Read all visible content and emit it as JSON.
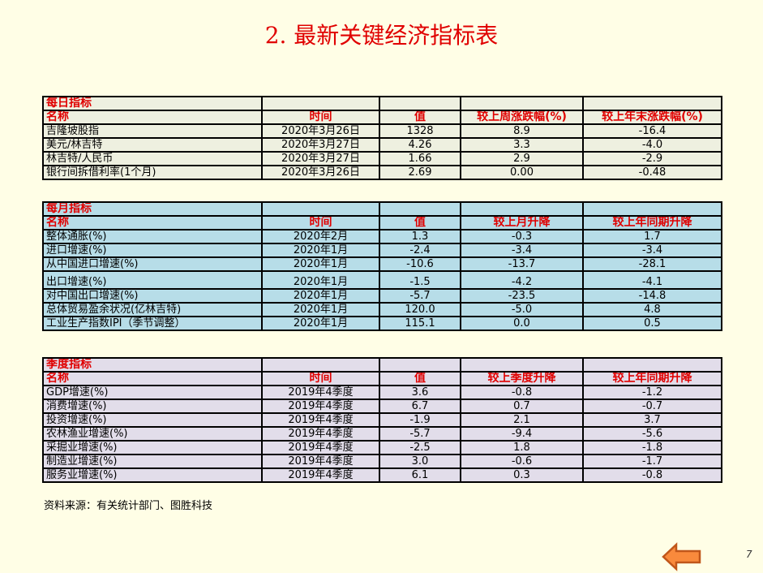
{
  "title": "2. 最新关键经济指标表",
  "daily": {
    "section": "每日指标",
    "headers": [
      "名称",
      "时间",
      "值",
      "较上周涨跌幅(%)",
      "较上年末涨跌幅(%)"
    ],
    "rows": [
      [
        "吉隆坡股指",
        "2020年3月26日",
        "1328",
        "8.9",
        "-16.4"
      ],
      [
        "美元/林吉特",
        "2020年3月27日",
        "4.26",
        "3.3",
        "-4.0"
      ],
      [
        "林吉特/人民币",
        "2020年3月27日",
        "1.66",
        "2.9",
        "-2.9"
      ],
      [
        "银行间拆借利率(1个月)",
        "2020年3月26日",
        "2.69",
        "0.00",
        "-0.48"
      ]
    ]
  },
  "monthly": {
    "section": "每月指标",
    "headers": [
      "名称",
      "时间",
      "值",
      "较上月升降",
      "较上年同期升降"
    ],
    "rows": [
      [
        "整体通胀(%)",
        "2020年2月",
        "1.3",
        "-0.3",
        "1.7"
      ],
      [
        "进口增速(%)",
        "2020年1月",
        "-2.4",
        "-3.4",
        "-3.4"
      ],
      [
        "从中国进口增速(%)",
        "2020年1月",
        "-10.6",
        "-13.7",
        "-28.1"
      ],
      [
        "出口增速(%)",
        "2020年1月",
        "-1.5",
        "-4.2",
        "-4.1"
      ],
      [
        "对中国出口增速(%)",
        "2020年1月",
        "-5.7",
        "-23.5",
        "-14.8"
      ],
      [
        "总体贸易盈余状况(亿林吉特)",
        "2020年1月",
        "120.0",
        "-5.0",
        "4.8"
      ],
      [
        "工业生产指数IPI（季节调整）",
        "2020年1月",
        "115.1",
        "0.0",
        "0.5"
      ]
    ]
  },
  "quarterly": {
    "section": "季度指标",
    "headers": [
      "名称",
      "时间",
      "值",
      "较上季度升降",
      "较上年同期升降"
    ],
    "rows": [
      [
        "GDP增速(%)",
        "2019年4季度",
        "3.6",
        "-0.8",
        "-1.2"
      ],
      [
        "消费增速(%)",
        "2019年4季度",
        "6.7",
        "0.7",
        "-0.7"
      ],
      [
        "投资增速(%)",
        "2019年4季度",
        "-1.9",
        "2.1",
        "3.7"
      ],
      [
        "农林渔业增速(%)",
        "2019年4季度",
        "-5.7",
        "-9.4",
        "-5.6"
      ],
      [
        "采掘业增速(%)",
        "2019年4季度",
        "-2.5",
        "1.8",
        "-1.8"
      ],
      [
        "制造业增速(%)",
        "2019年4季度",
        "3.0",
        "-0.6",
        "-1.7"
      ],
      [
        "服务业增速(%)",
        "2019年4季度",
        "6.1",
        "0.3",
        "-0.8"
      ]
    ]
  },
  "source": "资料来源：有关统计部门、图胜科技",
  "page_number": "7",
  "colors": {
    "title": "#E00000",
    "daily_bg": "#EEF0E0",
    "monthly_bg": "#B7DDE8",
    "quarterly_bg": "#E2DDEA",
    "arrow": "#F98A3C"
  }
}
